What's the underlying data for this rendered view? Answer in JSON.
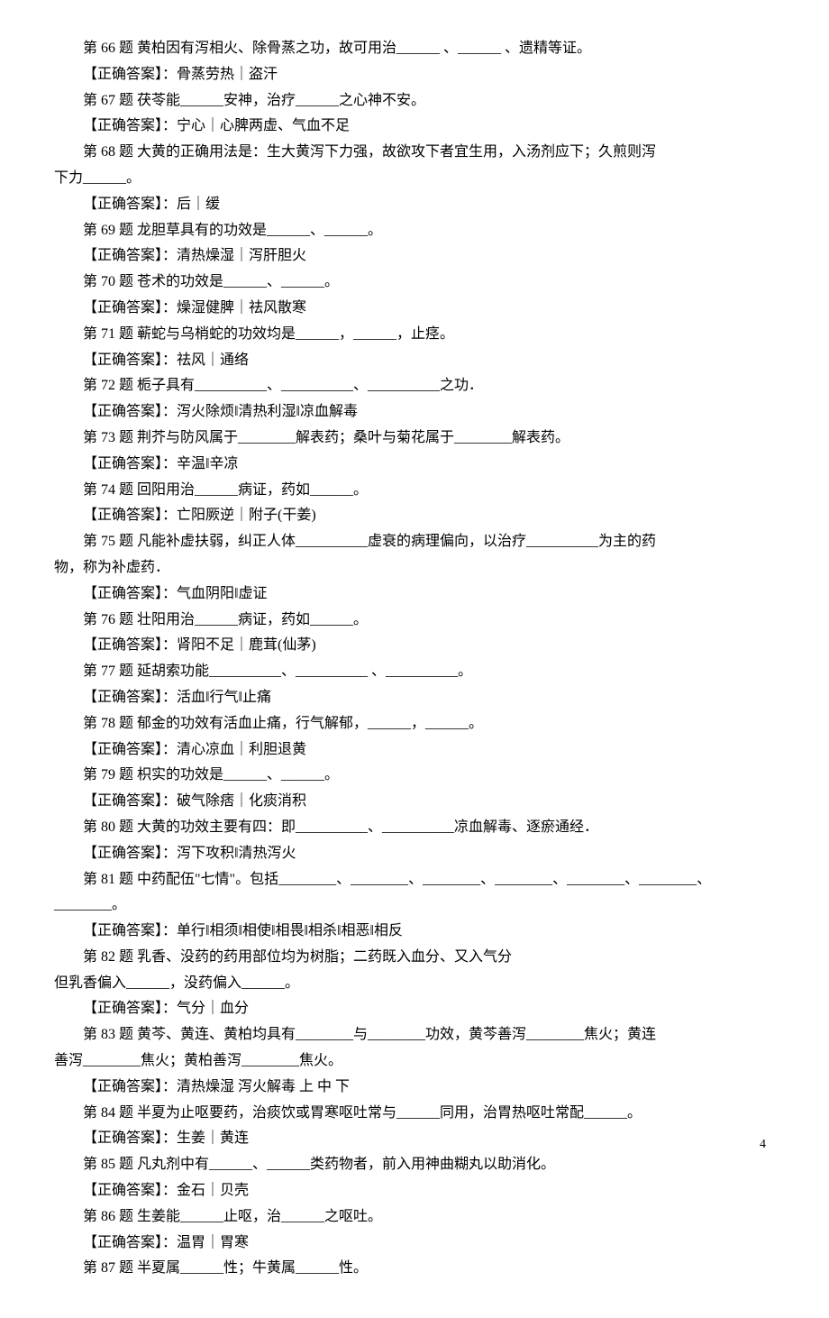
{
  "page_number": "4",
  "lines": [
    "第 66 题 黄柏因有泻相火、除骨蒸之功，故可用治______ 、______ 、遗精等证。",
    "【正确答案】：骨蒸劳热｜盗汗",
    "第 67 题 茯苓能______安神，治疗______之心神不安。",
    "【正确答案】：宁心｜心脾两虚、气血不足",
    "第 68 题 大黄的正确用法是：生大黄泻下力强，故欲攻下者宜生用，入汤剂应下；久煎则泻",
    "下力______。",
    "【正确答案】：后｜缓",
    "第 69 题 龙胆草具有的功效是______、______。",
    "【正确答案】：清热燥湿｜泻肝胆火",
    "第 70 题 苍术的功效是______、______。",
    "【正确答案】：燥湿健脾｜祛风散寒",
    "第 71 题 蕲蛇与乌梢蛇的功效均是______，______，止痉。",
    "【正确答案】：祛风｜通络",
    "第 72 题 栀子具有__________、__________、__________之功．",
    "【正确答案】：泻火除烦‖清热利湿‖凉血解毒",
    "第 73 题 荆芥与防风属于________解表药；桑叶与菊花属于________解表药。",
    "【正确答案】：辛温‖辛凉",
    "第 74 题 回阳用治______病证，药如______。",
    "【正确答案】：亡阳厥逆｜附子(干姜)",
    "第 75 题 凡能补虚扶弱，纠正人体__________虚衰的病理偏向，以治疗__________为主的药",
    "物，称为补虚药．",
    "【正确答案】：气血阴阳‖虚证",
    "第 76 题 壮阳用治______病证，药如______。",
    "【正确答案】：肾阳不足｜鹿茸(仙茅)",
    "第 77 题 延胡索功能__________、__________ 、__________。",
    "【正确答案】：活血‖行气‖止痛",
    "第 78 题 郁金的功效有活血止痛，行气解郁，______，______。",
    "【正确答案】：清心凉血｜利胆退黄",
    "第 79 题 枳实的功效是______、______。",
    "【正确答案】：破气除痞｜化痰消积",
    "第 80 题 大黄的功效主要有四：即__________、__________凉血解毒、逐瘀通经．",
    "【正确答案】：泻下攻积‖清热泻火",
    "第 81 题 中药配伍\"七情\"。包括________、________、________、________、________、________、",
    "________。",
    "【正确答案】：单行‖相须‖相使‖相畏‖相杀‖相恶‖相反",
    "第 82 题 乳香、没药的药用部位均为树脂；二药既入血分、又入气分",
    "但乳香偏入______，没药偏入______。",
    "【正确答案】：气分｜血分",
    "第 83 题 黄芩、黄连、黄柏均具有________与________功效，黄芩善泻________焦火；黄连",
    "善泻________焦火；黄柏善泻________焦火。",
    "【正确答案】：清热燥湿 泻火解毒 上 中 下",
    "第 84 题 半夏为止呕要药，治痰饮或胃寒呕吐常与______同用，治胃热呕吐常配______。",
    "【正确答案】：生姜｜黄连",
    "第 85 题 凡丸剂中有______、______类药物者，前入用神曲糊丸以助消化。",
    "【正确答案】：金石｜贝壳",
    "第 86 题 生姜能______止呕，治______之呕吐。",
    "【正确答案】：温胃｜胃寒",
    "第 87 题 半夏属______性；牛黄属______性。"
  ],
  "noindent_indices": [
    5,
    20,
    33,
    36,
    39
  ]
}
